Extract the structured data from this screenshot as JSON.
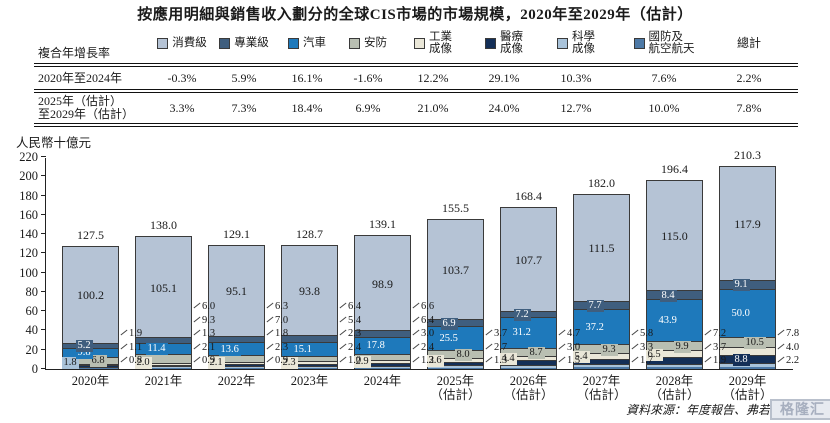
{
  "title": "按應用明細與銷售收入劃分的全球CIS市場的市場規模，2020年至2029年（估計）",
  "table": {
    "row_header": "複合年增長率",
    "total_header": "總計",
    "rows": [
      {
        "label": "2020年至2024年",
        "label2": "",
        "values": [
          "-0.3%",
          "5.9%",
          "16.1%",
          "-1.6%",
          "12.2%",
          "29.1%",
          "10.3%",
          "7.6%"
        ],
        "total": "2.2%"
      },
      {
        "label": "2025年（估計）",
        "label2": "至2029年（估計）",
        "values": [
          "3.3%",
          "7.3%",
          "18.4%",
          "6.9%",
          "21.0%",
          "24.0%",
          "12.7%",
          "10.0%"
        ],
        "total": "7.8%"
      }
    ]
  },
  "chart_data": {
    "type": "bar",
    "stacked": true,
    "title": "按應用明細與銷售收入劃分的全球CIS市場的市場規模，2020年至2029年（估計）",
    "ylabel": "人民幣十億元",
    "ylim": [
      0,
      220
    ],
    "ytick_step": 20,
    "grid": false,
    "legend_position": "top-table",
    "categories": [
      "2020年",
      "2021年",
      "2022年",
      "2023年",
      "2024年",
      "2025年（估計）",
      "2026年（估計）",
      "2027年（估計）",
      "2028年（估計）",
      "2029年（估計）"
    ],
    "totals": [
      "127.5",
      "138.0",
      "129.1",
      "128.7",
      "139.1",
      "155.5",
      "168.4",
      "182.0",
      "196.4",
      "210.3"
    ],
    "stack_order_bottom_to_top": [
      "defense",
      "scientific",
      "medical",
      "industrial",
      "security",
      "automotive",
      "professional",
      "consumer"
    ],
    "series": [
      {
        "key": "consumer",
        "name": "消費級",
        "name2": "",
        "color": "#b5c3d5",
        "text": "#1a1a1a",
        "values": [
          "100.2",
          "105.1",
          "95.1",
          "93.8",
          "98.9",
          "103.7",
          "107.7",
          "111.5",
          "115.0",
          "117.9"
        ],
        "label_modes": [
          "inside",
          "inside",
          "inside",
          "inside",
          "inside",
          "inside",
          "inside",
          "inside",
          "inside",
          "inside"
        ]
      },
      {
        "key": "professional",
        "name": "專業級",
        "name2": "",
        "color": "#3f5e7e",
        "text": "#ffffff",
        "values": [
          "5.2",
          "6.0",
          "6.3",
          "6.4",
          "6.6",
          "6.9",
          "7.2",
          "7.7",
          "8.4",
          "9.1"
        ],
        "label_modes": [
          "box",
          "callout",
          "callout",
          "callout",
          "callout",
          "box",
          "box",
          "box",
          "box",
          "box"
        ]
      },
      {
        "key": "automotive",
        "name": "汽車",
        "name2": "",
        "color": "#1e79bb",
        "text": "#ffffff",
        "values": [
          "9.8",
          "11.4",
          "13.6",
          "15.1",
          "17.8",
          "25.5",
          "31.2",
          "37.2",
          "43.9",
          "50.0"
        ],
        "label_modes": [
          "box",
          "box",
          "box",
          "box",
          "box",
          "box",
          "box",
          "box",
          "box",
          "box"
        ]
      },
      {
        "key": "security",
        "name": "安防",
        "name2": "",
        "color": "#b9bfb2",
        "text": "#1a1a1a",
        "values": [
          "6.8",
          "9.3",
          "7.0",
          "5.4",
          "6.4",
          "8.0",
          "8.7",
          "9.3",
          "9.9",
          "10.5"
        ],
        "label_modes": [
          "box",
          "callout",
          "callout",
          "callout",
          "callout",
          "box",
          "box",
          "box",
          "box",
          "box"
        ]
      },
      {
        "key": "industrial",
        "name": "工業",
        "name2": "成像",
        "color": "#eae7d8",
        "text": "#1a1a1a",
        "values": [
          "1.9",
          "2.0",
          "2.1",
          "2.3",
          "2.9",
          "3.6",
          "4.4",
          "5.4",
          "6.5",
          "7.8"
        ],
        "label_modes": [
          "callout",
          "box",
          "box",
          "box",
          "box",
          "box",
          "box",
          "box",
          "box",
          "callout"
        ]
      },
      {
        "key": "medical",
        "name": "醫療",
        "name2": "成像",
        "color": "#142f57",
        "text": "#ffffff",
        "values": [
          "1.1",
          "1.3",
          "1.8",
          "2.3",
          "3.0",
          "3.7",
          "4.7",
          "5.8",
          "7.2",
          "8.8"
        ],
        "label_modes": [
          "callout",
          "callout",
          "callout",
          "callout",
          "callout",
          "callout",
          "callout",
          "callout",
          "callout",
          "box"
        ]
      },
      {
        "key": "scientific",
        "name": "科學",
        "name2": "成像",
        "color": "#a9c3da",
        "text": "#1a1a1a",
        "values": [
          "1.8",
          "2.1",
          "2.3",
          "2.4",
          "2.4",
          "2.7",
          "3.0",
          "3.3",
          "3.7",
          "4.0"
        ],
        "label_modes": [
          "box",
          "callout",
          "callout",
          "callout",
          "callout",
          "callout",
          "callout",
          "callout",
          "callout",
          "callout"
        ]
      },
      {
        "key": "defense",
        "name": "國防及",
        "name2": "航空航天",
        "color": "#4d79a6",
        "text": "#ffffff",
        "values": [
          "0.8",
          "0.9",
          "0.9",
          "1.0",
          "1.2",
          "1.3",
          "1.5",
          "1.7",
          "1.9",
          "2.2"
        ],
        "label_modes": [
          "callout",
          "callout",
          "callout",
          "callout",
          "callout",
          "callout",
          "callout",
          "callout",
          "callout",
          "callout"
        ]
      }
    ]
  },
  "source_line": "資料來源：年度報告、弗若斯特",
  "watermark": "格隆汇"
}
